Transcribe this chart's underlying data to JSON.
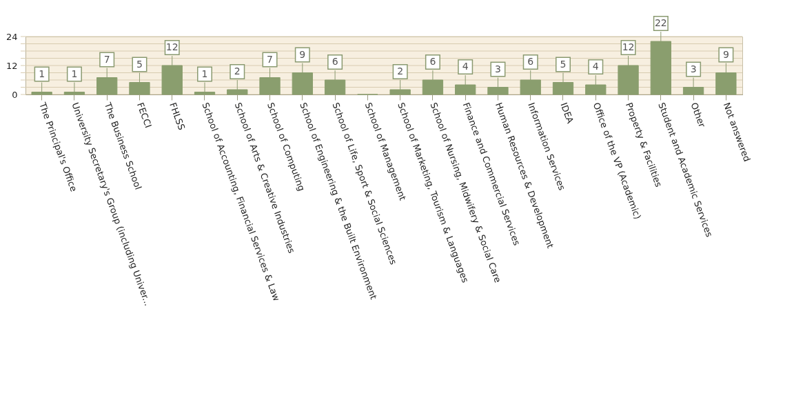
{
  "chart_data": {
    "type": "bar",
    "categories": [
      "The Principal's Office",
      "University Secretary's Group (including Univer...",
      "The Business School",
      "FECCI",
      "FHLSS",
      "School of Accounting, Financial Services & Law",
      "School of Arts & Creative Industries",
      "School of Computing",
      "School of Engineering & the Built Environment",
      "School of Life, Sport & Social Sciences",
      "School of Management",
      "School of Marketing, Tourism & Languages",
      "School of Nursing, Midwifery & Social Care",
      "Finance and Commercial Services",
      "Human Resources & Development",
      "Information Services",
      "IDEA",
      "Office of the VP (Academic)",
      "Property & Facilities",
      "Student and Academic Services",
      "Other",
      "Not answered"
    ],
    "values": [
      1,
      1,
      7,
      5,
      12,
      1,
      2,
      7,
      9,
      6,
      0,
      2,
      6,
      4,
      3,
      6,
      5,
      4,
      12,
      22,
      3,
      9
    ],
    "value_labels": [
      "1",
      "1",
      "7",
      "5",
      "12",
      "1",
      "2",
      "7",
      "9",
      "6",
      null,
      "2",
      "6",
      "4",
      "3",
      "6",
      "5",
      "4",
      "12",
      "22",
      "3",
      "9"
    ],
    "color": "#8a9e6e",
    "ylim": [
      0,
      24
    ],
    "yticks": [
      0,
      {
        "value": 3,
        "label": null
      },
      {
        "value": 6,
        "label": null
      },
      {
        "value": 9,
        "label": null
      },
      12,
      {
        "value": 15,
        "label": null
      },
      {
        "value": 18,
        "label": null
      },
      {
        "value": 21,
        "label": null
      },
      24
    ],
    "grid": "y"
  }
}
